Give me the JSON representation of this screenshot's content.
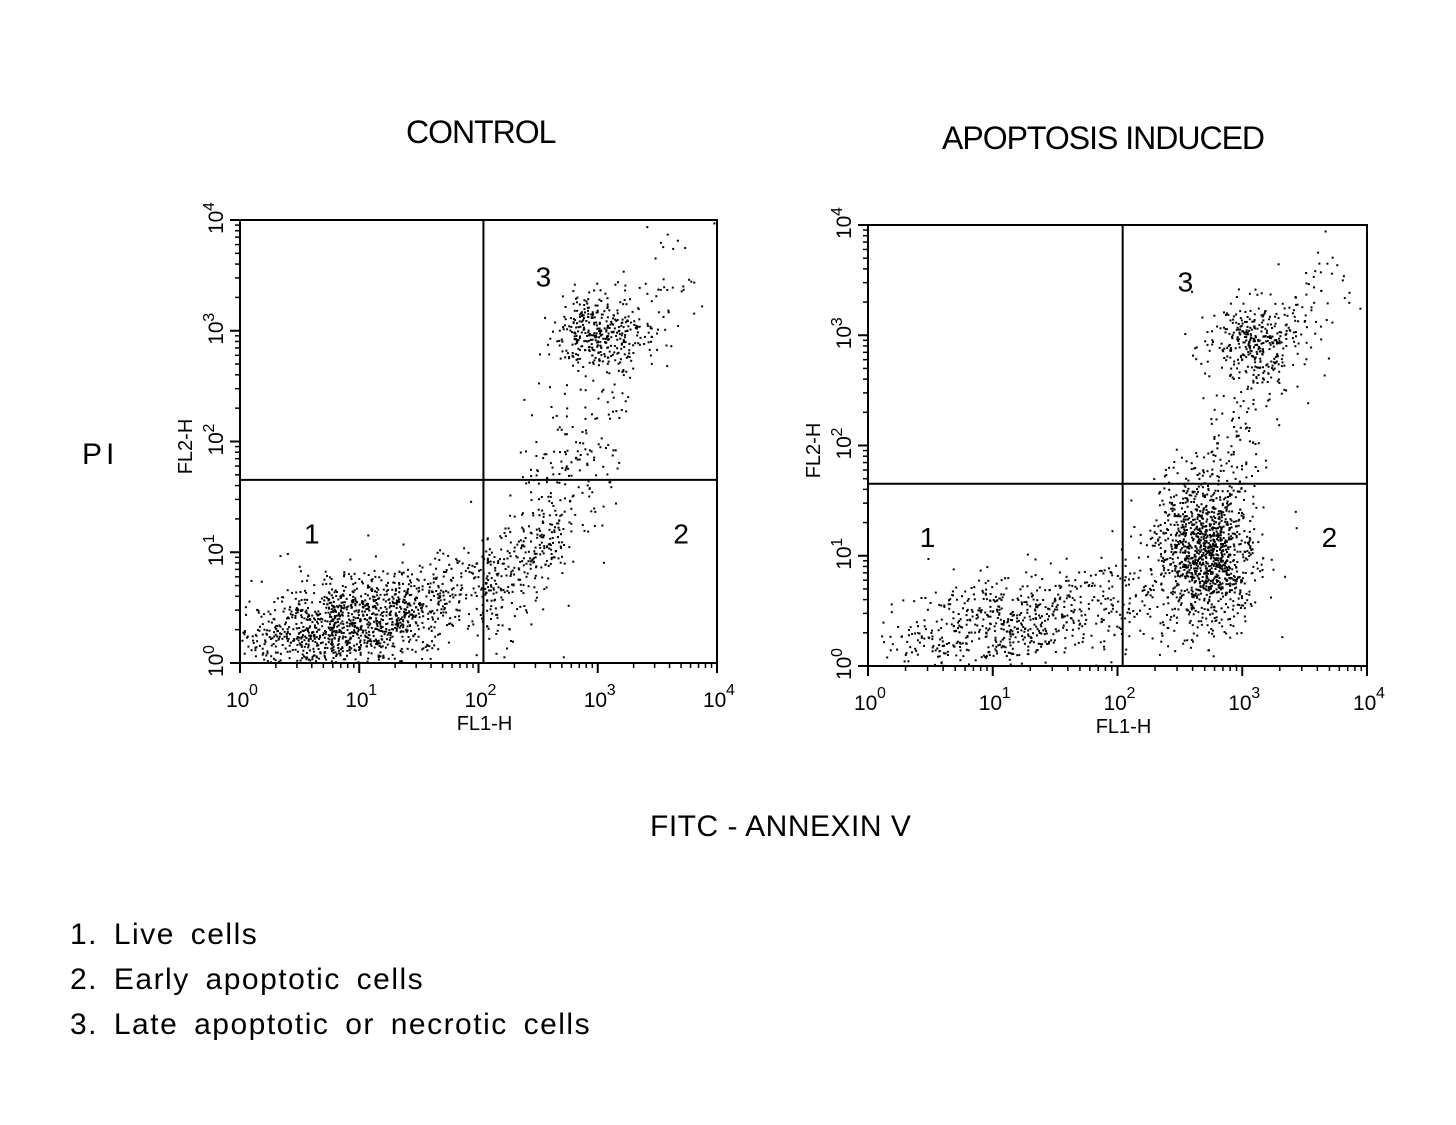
{
  "y_axis_label": "PI",
  "x_axis_label": "FITC - ANNEXIN V",
  "legend": [
    {
      "num": "1.",
      "text": "Live cells"
    },
    {
      "num": "2.",
      "text": "Early apoptotic cells"
    },
    {
      "num": "3.",
      "text": "Late apoptotic or necrotic cells"
    }
  ],
  "colors": {
    "ink": "#000000",
    "background": "#ffffff"
  },
  "chart_data": [
    {
      "type": "scatter",
      "title": "CONTROL",
      "xlabel": "FL1-H",
      "ylabel": "FL2-H",
      "xscale": "log",
      "yscale": "log",
      "xlim": [
        1,
        10000
      ],
      "ylim": [
        1,
        10000
      ],
      "x_ticks": [
        "10^0",
        "10^1",
        "10^2",
        "10^3",
        "10^4"
      ],
      "y_ticks": [
        "10^0",
        "10^1",
        "10^2",
        "10^3",
        "10^4"
      ],
      "quadrant_gates": {
        "x": 110,
        "y": 45
      },
      "quadrant_labels": [
        {
          "label": "1",
          "x": 4,
          "y": 12
        },
        {
          "label": "2",
          "x": 5000,
          "y": 12
        },
        {
          "label": "3",
          "x": 350,
          "y": 2500
        }
      ],
      "clusters": [
        {
          "name": "1",
          "center_x": 8,
          "center_y": 2.2,
          "points": 1500
        },
        {
          "name": "3",
          "center_x": 1000,
          "center_y": 1000,
          "points": 500
        }
      ]
    },
    {
      "type": "scatter",
      "title": "APOPTOSIS INDUCED",
      "xlabel": "FL1-H",
      "ylabel": "FL2-H",
      "xscale": "log",
      "yscale": "log",
      "xlim": [
        1,
        10000
      ],
      "ylim": [
        1,
        10000
      ],
      "x_ticks": [
        "10^0",
        "10^1",
        "10^2",
        "10^3",
        "10^4"
      ],
      "y_ticks": [
        "10^0",
        "10^1",
        "10^2",
        "10^3",
        "10^4"
      ],
      "quadrant_gates": {
        "x": 110,
        "y": 45
      },
      "quadrant_labels": [
        {
          "label": "1",
          "x": 3,
          "y": 12
        },
        {
          "label": "2",
          "x": 5000,
          "y": 12
        },
        {
          "label": "3",
          "x": 350,
          "y": 2500
        }
      ],
      "clusters": [
        {
          "name": "1",
          "center_x": 12,
          "center_y": 2.5,
          "points": 700
        },
        {
          "name": "2",
          "center_x": 550,
          "center_y": 10,
          "points": 1000
        },
        {
          "name": "3",
          "center_x": 1200,
          "center_y": 900,
          "points": 500
        }
      ]
    }
  ]
}
